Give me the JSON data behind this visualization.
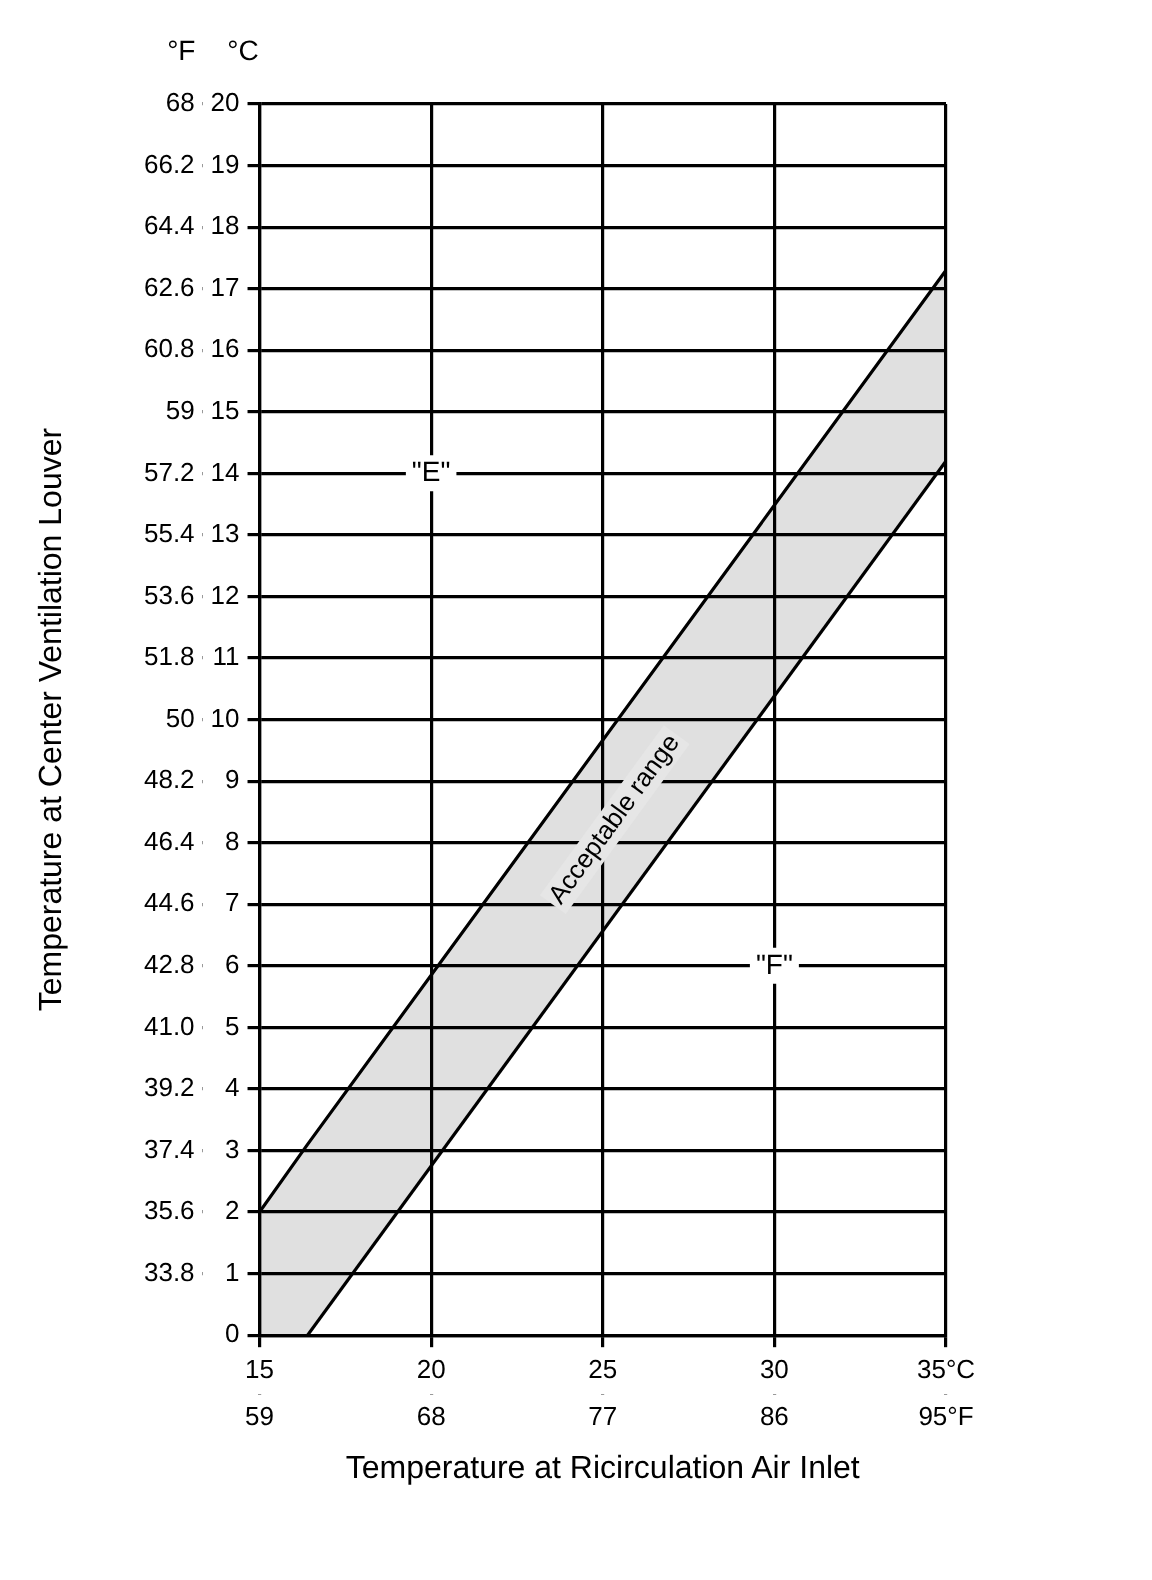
{
  "chart_data": {
    "type": "line",
    "xlabel": "Temperature at Ricirculation Air Inlet",
    "y2label": "Temperature at Center Ventilation Louver",
    "annotations": [
      "°F",
      "°C",
      "Acceptable range",
      {
        "text": "\"E\"",
        "x": 20,
        "y": 14
      },
      {
        "text": "\"F\"",
        "x": 30,
        "y": 6
      }
    ],
    "series": [
      {
        "x": [
          15,
          16.4,
          35
        ],
        "values": [
          2,
          3.1,
          17.3
        ],
        "lower": [
          0,
          0,
          14.2
        ],
        "upper": [
          2,
          3.1,
          17.3
        ],
        "color": "#000000"
      },
      {
        "x": [
          16.4,
          35
        ],
        "values": [
          0,
          14.2
        ],
        "color": "#000000"
      }
    ],
    "xlim": [
      15,
      35
    ],
    "xticks": [
      15,
      20,
      25,
      30,
      {
        "value": 35,
        "label": "35°C"
      }
    ],
    "x2lim": [
      59,
      95
    ],
    "x2ticks": [
      59,
      68,
      77,
      86,
      {
        "value": 95,
        "label": "95°F"
      }
    ],
    "ylim": [
      0,
      20
    ],
    "yticks": [
      0,
      1,
      2,
      3,
      4,
      5,
      6,
      7,
      8,
      9,
      10,
      11,
      12,
      13,
      14,
      15,
      16,
      17,
      18,
      19,
      20
    ],
    "y2lim": [
      32,
      68
    ],
    "y2ticks": [
      33.8,
      35.6,
      37.4,
      39.2,
      {
        "value": 41,
        "label": "41.0"
      },
      42.8,
      44.6,
      46.4,
      48.2,
      50,
      51.8,
      53.6,
      55.4,
      57.2,
      59,
      60.8,
      62.6,
      64.4,
      66.2,
      68
    ],
    "grid": true,
    "legend": false,
    "marker": "none",
    "line_style": "solid"
  }
}
